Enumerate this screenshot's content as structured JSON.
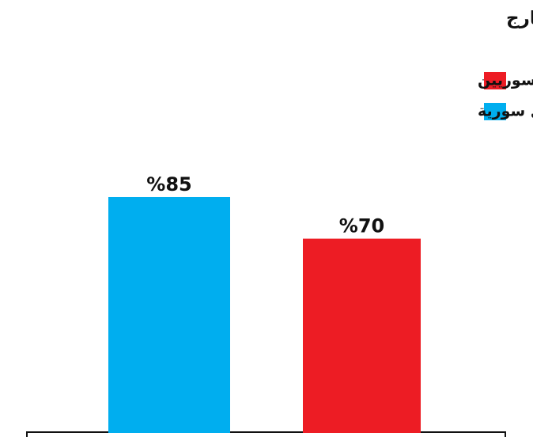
{
  "chart_data": {
    "type": "bar",
    "title": "نسبة الفقر بين السوريين في الداخل واللاجئين في الخارج",
    "categories": [
      null
    ],
    "series": [
      {
        "name": "داخل سورية",
        "color": "#00aeef",
        "values": [
          85
        ],
        "value_labels": [
          "%85"
        ]
      },
      {
        "name": "ضمن مجتمع اللاجئين السوريين",
        "color": "#ed1c24",
        "values": [
          70
        ],
        "value_labels": [
          "%70"
        ]
      }
    ],
    "ylim": [
      0,
      100
    ],
    "grid": false
  }
}
